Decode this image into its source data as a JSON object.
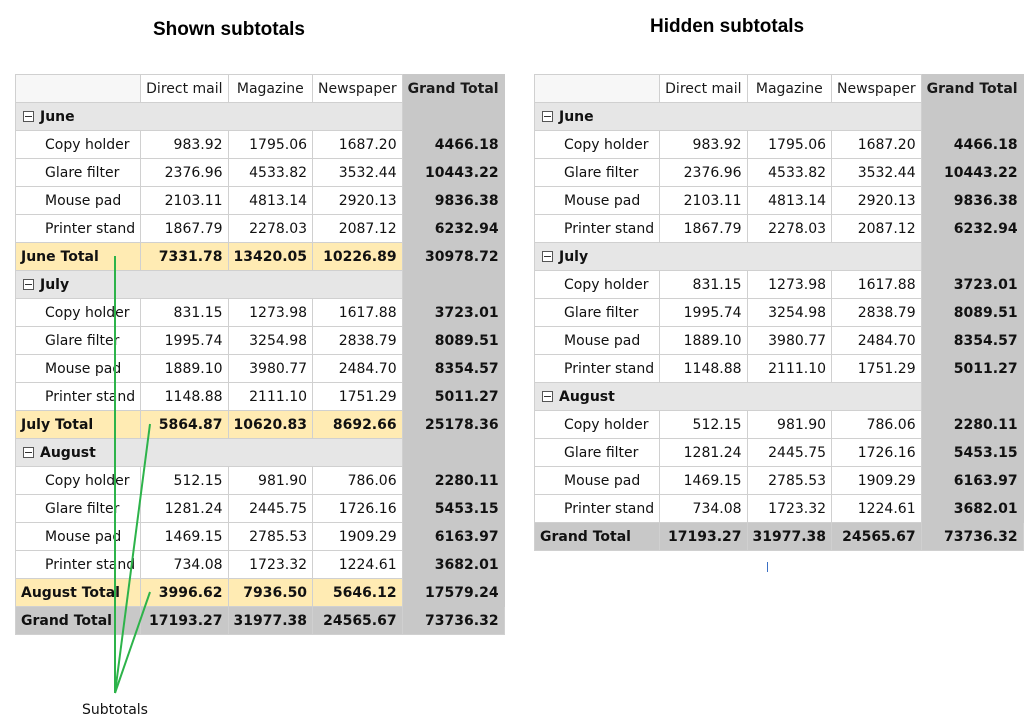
{
  "left": {
    "title": "Shown subtotals",
    "columns": [
      "",
      "Direct mail",
      "Magazine",
      "Newspaper",
      "Grand Total"
    ],
    "months": [
      {
        "name": "June",
        "rows": [
          {
            "label": "Copy holder",
            "values": [
              "983.92",
              "1795.06",
              "1687.20"
            ],
            "total": "4466.18"
          },
          {
            "label": "Glare filter",
            "values": [
              "2376.96",
              "4533.82",
              "3532.44"
            ],
            "total": "10443.22"
          },
          {
            "label": "Mouse pad",
            "values": [
              "2103.11",
              "4813.14",
              "2920.13"
            ],
            "total": "9836.38"
          },
          {
            "label": "Printer stand",
            "values": [
              "1867.79",
              "2278.03",
              "2087.12"
            ],
            "total": "6232.94"
          }
        ],
        "subtotal": {
          "label": "June Total",
          "values": [
            "7331.78",
            "13420.05",
            "10226.89"
          ],
          "total": "30978.72"
        }
      },
      {
        "name": "July",
        "rows": [
          {
            "label": "Copy holder",
            "values": [
              "831.15",
              "1273.98",
              "1617.88"
            ],
            "total": "3723.01"
          },
          {
            "label": "Glare filter",
            "values": [
              "1995.74",
              "3254.98",
              "2838.79"
            ],
            "total": "8089.51"
          },
          {
            "label": "Mouse pad",
            "values": [
              "1889.10",
              "3980.77",
              "2484.70"
            ],
            "total": "8354.57"
          },
          {
            "label": "Printer stand",
            "values": [
              "1148.88",
              "2111.10",
              "1751.29"
            ],
            "total": "5011.27"
          }
        ],
        "subtotal": {
          "label": "July Total",
          "values": [
            "5864.87",
            "10620.83",
            "8692.66"
          ],
          "total": "25178.36"
        }
      },
      {
        "name": "August",
        "rows": [
          {
            "label": "Copy holder",
            "values": [
              "512.15",
              "981.90",
              "786.06"
            ],
            "total": "2280.11"
          },
          {
            "label": "Glare filter",
            "values": [
              "1281.24",
              "2445.75",
              "1726.16"
            ],
            "total": "5453.15"
          },
          {
            "label": "Mouse pad",
            "values": [
              "1469.15",
              "2785.53",
              "1909.29"
            ],
            "total": "6163.97"
          },
          {
            "label": "Printer stand",
            "values": [
              "734.08",
              "1723.32",
              "1224.61"
            ],
            "total": "3682.01"
          }
        ],
        "subtotal": {
          "label": "August Total",
          "values": [
            "3996.62",
            "7936.50",
            "5646.12"
          ],
          "total": "17579.24"
        }
      }
    ],
    "grand": {
      "label": "Grand Total",
      "values": [
        "17193.27",
        "31977.38",
        "24565.67"
      ],
      "total": "73736.32"
    }
  },
  "right": {
    "title": "Hidden subtotals",
    "columns": [
      "",
      "Direct mail",
      "Magazine",
      "Newspaper",
      "Grand Total"
    ],
    "months": [
      {
        "name": "June",
        "rows": [
          {
            "label": "Copy holder",
            "values": [
              "983.92",
              "1795.06",
              "1687.20"
            ],
            "total": "4466.18"
          },
          {
            "label": "Glare filter",
            "values": [
              "2376.96",
              "4533.82",
              "3532.44"
            ],
            "total": "10443.22"
          },
          {
            "label": "Mouse pad",
            "values": [
              "2103.11",
              "4813.14",
              "2920.13"
            ],
            "total": "9836.38"
          },
          {
            "label": "Printer stand",
            "values": [
              "1867.79",
              "2278.03",
              "2087.12"
            ],
            "total": "6232.94"
          }
        ]
      },
      {
        "name": "July",
        "rows": [
          {
            "label": "Copy holder",
            "values": [
              "831.15",
              "1273.98",
              "1617.88"
            ],
            "total": "3723.01"
          },
          {
            "label": "Glare filter",
            "values": [
              "1995.74",
              "3254.98",
              "2838.79"
            ],
            "total": "8089.51"
          },
          {
            "label": "Mouse pad",
            "values": [
              "1889.10",
              "3980.77",
              "2484.70"
            ],
            "total": "8354.57"
          },
          {
            "label": "Printer stand",
            "values": [
              "1148.88",
              "2111.10",
              "1751.29"
            ],
            "total": "5011.27"
          }
        ]
      },
      {
        "name": "August",
        "rows": [
          {
            "label": "Copy holder",
            "values": [
              "512.15",
              "981.90",
              "786.06"
            ],
            "total": "2280.11"
          },
          {
            "label": "Glare filter",
            "values": [
              "1281.24",
              "2445.75",
              "1726.16"
            ],
            "total": "5453.15"
          },
          {
            "label": "Mouse pad",
            "values": [
              "1469.15",
              "2785.53",
              "1909.29"
            ],
            "total": "6163.97"
          },
          {
            "label": "Printer stand",
            "values": [
              "734.08",
              "1723.32",
              "1224.61"
            ],
            "total": "3682.01"
          }
        ]
      }
    ],
    "grand": {
      "label": "Grand Total",
      "values": [
        "17193.27",
        "31977.38",
        "24565.67"
      ],
      "total": "73736.32"
    }
  },
  "callout": {
    "label": "Subtotals",
    "color": "#2db34a"
  },
  "colors": {
    "subtotal_bg": "#ffebb3",
    "grand_bg": "#c8c8c8",
    "group_bg": "#e6e6e6"
  }
}
